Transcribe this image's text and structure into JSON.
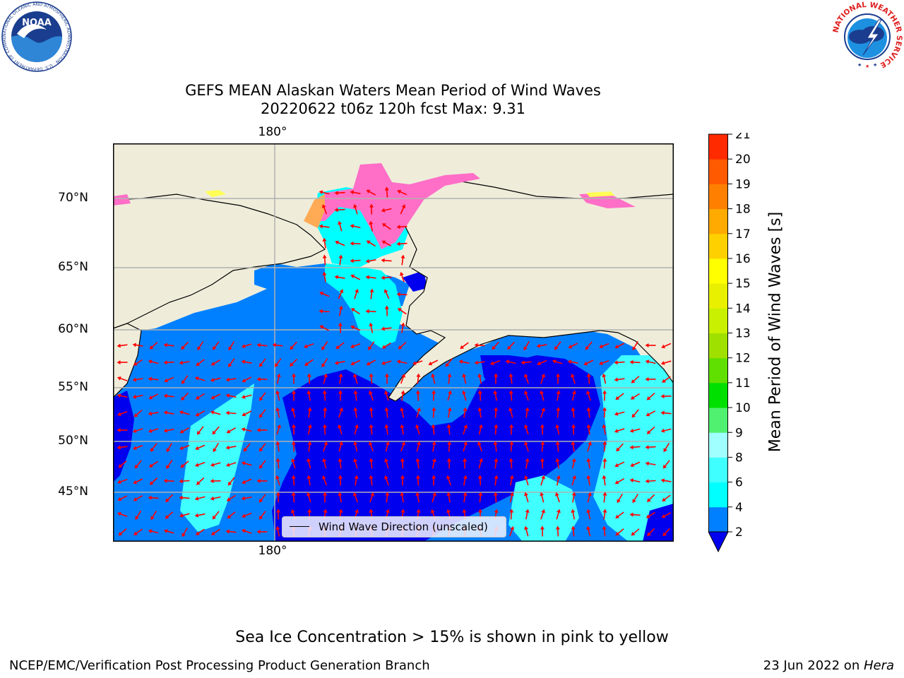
{
  "title_line1": "GEFS MEAN Alaskan Waters Mean Period of Wind Waves",
  "title_line2": "20220622 t06z 120h fcst   Max: 9.31",
  "axes": {
    "x_top_label": "180°",
    "x_bottom_label": "180°",
    "lat_labels": [
      "70°N",
      "65°N",
      "60°N",
      "55°N",
      "50°N",
      "45°N"
    ]
  },
  "legend": {
    "label": "Wind Wave Direction (unscaled)"
  },
  "colorbar": {
    "label": "Mean Period of Wind Waves [s]",
    "ticks": [
      "2",
      "4",
      "6",
      "8",
      "9",
      "10",
      "11",
      "12",
      "13",
      "14",
      "15",
      "16",
      "17",
      "18",
      "19",
      "20",
      "21"
    ],
    "colors": [
      "#0080ff",
      "#00ffff",
      "#40ffff",
      "#a0ffff",
      "#50f070",
      "#00e000",
      "#60e000",
      "#a0e000",
      "#c8f000",
      "#e8f000",
      "#ffff00",
      "#ffd000",
      "#ffaa00",
      "#ff8000",
      "#ff5a00",
      "#ff2a00"
    ],
    "under_color": "#0000ee"
  },
  "map_colors": {
    "land": "#efedda",
    "deep_blue": "#0000ee",
    "mid_blue": "#0080ff",
    "cyan": "#00ffff",
    "light_cyan": "#40ffff",
    "ice_pink": "#ff6ec7",
    "ice_orange": "#ffaa55",
    "ice_yellow": "#ffff55",
    "arrow": "#ff0000",
    "grid": "#b0b0b0"
  },
  "footnote": "Sea Ice Concentration > 15% is shown in pink to yellow",
  "credit_left": "NCEP/EMC/Verification Post Processing Product Generation Branch",
  "credit_right_date": "23 Jun 2022 on ",
  "credit_right_host": "Hera",
  "logos": {
    "noaa_text": "NOAA",
    "noaa_ring_text": "NATIONAL OCEANIC AND ATMOSPHERIC ADMINISTRATION · U.S. DEPARTMENT OF COMMERCE",
    "nws_ring_text": "NATIONAL WEATHER SERVICE"
  }
}
